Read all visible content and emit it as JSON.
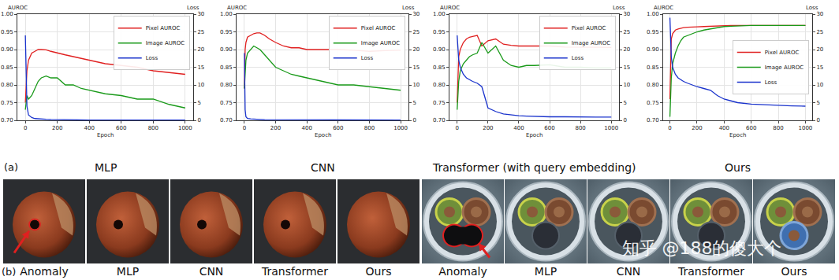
{
  "panel_labels": [
    "(a)",
    "(b)"
  ],
  "chart_data": [
    {
      "type": "line",
      "title": "MLP",
      "x_label": "Epoch",
      "y_label": "AUROC",
      "y2_label": "Loss",
      "x": [
        0,
        5,
        10,
        20,
        40,
        60,
        80,
        100,
        130,
        160,
        200,
        250,
        300,
        350,
        400,
        450,
        500,
        600,
        700,
        800,
        900,
        1000
      ],
      "series": [
        {
          "name": "Pixel AUROC",
          "color": "#e02020",
          "values": [
            0.75,
            0.8,
            0.84,
            0.87,
            0.89,
            0.895,
            0.9,
            0.9,
            0.899,
            0.895,
            0.89,
            0.885,
            0.88,
            0.875,
            0.87,
            0.865,
            0.86,
            0.855,
            0.85,
            0.84,
            0.835,
            0.83
          ]
        },
        {
          "name": "Image AUROC",
          "color": "#1a9a1a",
          "values": [
            0.73,
            0.76,
            0.77,
            0.76,
            0.77,
            0.79,
            0.81,
            0.82,
            0.825,
            0.82,
            0.82,
            0.8,
            0.8,
            0.79,
            0.785,
            0.78,
            0.775,
            0.77,
            0.76,
            0.76,
            0.745,
            0.735
          ]
        },
        {
          "name": "Loss",
          "color": "#1a33cc",
          "axis": "y2",
          "values": [
            24,
            10,
            4,
            1.5,
            0.8,
            0.5,
            0.4,
            0.3,
            0.3,
            0.25,
            0.2,
            0.2,
            0.15,
            0.15,
            0.1,
            0.1,
            0.1,
            0.1,
            0.1,
            0.1,
            0.1,
            0.1
          ]
        }
      ],
      "xlim": [
        -50,
        1050
      ],
      "xticks": [
        0,
        200,
        400,
        600,
        800,
        1000
      ],
      "ylim": [
        0.7,
        1.0
      ],
      "yticks": [
        {
          "value": 0.7,
          "label": "0.70"
        },
        {
          "value": 0.75,
          "label": "0.75"
        },
        {
          "value": 0.8,
          "label": "0.80"
        },
        {
          "value": 0.85,
          "label": "0.85"
        },
        {
          "value": 0.9,
          "label": "0.90"
        },
        {
          "value": 0.95,
          "label": "0.95"
        },
        {
          "value": 1.0,
          "label": "1.00"
        }
      ],
      "y2lim": [
        0,
        30
      ],
      "y2ticks": [
        0,
        5,
        10,
        15,
        20,
        25,
        30
      ],
      "grid": true,
      "legend": "upper right"
    },
    {
      "type": "line",
      "title": "CNN",
      "x_label": "Epoch",
      "y_label": "AUROC",
      "y2_label": "Loss",
      "x": [
        0,
        5,
        10,
        20,
        40,
        60,
        80,
        100,
        130,
        160,
        200,
        250,
        300,
        350,
        400,
        450,
        500,
        600,
        700,
        800,
        900,
        1000
      ],
      "series": [
        {
          "name": "Pixel AUROC",
          "color": "#e02020",
          "values": [
            0.79,
            0.9,
            0.92,
            0.935,
            0.94,
            0.945,
            0.947,
            0.947,
            0.94,
            0.93,
            0.92,
            0.91,
            0.905,
            0.905,
            0.9,
            0.9,
            0.9,
            0.9,
            0.898,
            0.895,
            0.897,
            0.898
          ]
        },
        {
          "name": "Image AUROC",
          "color": "#1a9a1a",
          "values": [
            0.79,
            0.84,
            0.87,
            0.89,
            0.9,
            0.91,
            0.905,
            0.9,
            0.885,
            0.87,
            0.85,
            0.84,
            0.83,
            0.825,
            0.82,
            0.815,
            0.81,
            0.8,
            0.8,
            0.795,
            0.79,
            0.785
          ]
        },
        {
          "name": "Loss",
          "color": "#1a33cc",
          "axis": "y2",
          "values": [
            19,
            3,
            1,
            0.5,
            0.4,
            0.3,
            0.3,
            0.25,
            0.2,
            0.2,
            0.2,
            0.15,
            0.15,
            0.15,
            0.1,
            0.1,
            0.1,
            0.1,
            0.1,
            0.1,
            0.1,
            0.1
          ]
        }
      ],
      "xlim": [
        -50,
        1050
      ],
      "xticks": [
        0,
        200,
        400,
        600,
        800,
        1000
      ],
      "ylim": [
        0.7,
        1.0
      ],
      "yticks": [
        {
          "value": 0.7,
          "label": "0.70"
        },
        {
          "value": 0.75,
          "label": "0.75"
        },
        {
          "value": 0.8,
          "label": "0.80"
        },
        {
          "value": 0.85,
          "label": "0.85"
        },
        {
          "value": 0.9,
          "label": "0.90"
        },
        {
          "value": 0.95,
          "label": "0.95"
        },
        {
          "value": 1.0,
          "label": "1.00"
        }
      ],
      "y2lim": [
        0,
        30
      ],
      "y2ticks": [
        0,
        5,
        10,
        15,
        20,
        25,
        30
      ],
      "grid": true,
      "legend": "upper right"
    },
    {
      "type": "line",
      "title": "Transformer (with query embedding)",
      "x_label": "Epoch",
      "y_label": "AUROC",
      "y2_label": "Loss",
      "x": [
        0,
        5,
        10,
        20,
        40,
        60,
        80,
        100,
        130,
        160,
        200,
        250,
        300,
        350,
        400,
        450,
        500,
        600,
        700,
        800,
        900,
        1000
      ],
      "series": [
        {
          "name": "Pixel AUROC",
          "color": "#e02020",
          "values": [
            0.75,
            0.85,
            0.88,
            0.9,
            0.92,
            0.93,
            0.935,
            0.937,
            0.94,
            0.91,
            0.925,
            0.93,
            0.915,
            0.912,
            0.91,
            0.91,
            0.91,
            0.91,
            0.907,
            0.907,
            0.906,
            0.906
          ]
        },
        {
          "name": "Image AUROC",
          "color": "#1a9a1a",
          "values": [
            0.73,
            0.78,
            0.81,
            0.84,
            0.86,
            0.87,
            0.88,
            0.885,
            0.89,
            0.92,
            0.89,
            0.91,
            0.87,
            0.855,
            0.85,
            0.855,
            0.855,
            0.857,
            0.85,
            0.85,
            0.848,
            0.848
          ]
        },
        {
          "name": "Loss",
          "color": "#1a33cc",
          "axis": "y2",
          "values": [
            24,
            19,
            17,
            15,
            13,
            12,
            11.5,
            11,
            10.5,
            9.5,
            3.5,
            2.5,
            1.8,
            1.5,
            1.3,
            1.2,
            1.1,
            1.0,
            1.0,
            0.9,
            0.9,
            0.9
          ]
        }
      ],
      "xlim": [
        -50,
        1050
      ],
      "xticks": [
        0,
        200,
        400,
        600,
        800,
        1000
      ],
      "ylim": [
        0.7,
        1.0
      ],
      "yticks": [
        {
          "value": 0.7,
          "label": "0.70"
        },
        {
          "value": 0.75,
          "label": "0.75"
        },
        {
          "value": 0.8,
          "label": "0.80"
        },
        {
          "value": 0.85,
          "label": "0.85"
        },
        {
          "value": 0.9,
          "label": "0.90"
        },
        {
          "value": 0.95,
          "label": "0.95"
        },
        {
          "value": 1.0,
          "label": "1.00"
        }
      ],
      "y2lim": [
        0,
        30
      ],
      "y2ticks": [
        0,
        5,
        10,
        15,
        20,
        25,
        30
      ],
      "grid": true,
      "legend": "upper right"
    },
    {
      "type": "line",
      "title": "Ours",
      "x_label": "Epoch",
      "y_label": "AUROC",
      "y2_label": "Loss",
      "x": [
        0,
        5,
        10,
        20,
        40,
        60,
        80,
        100,
        130,
        160,
        200,
        250,
        300,
        350,
        400,
        450,
        500,
        600,
        700,
        800,
        900,
        1000
      ],
      "series": [
        {
          "name": "Pixel AUROC",
          "color": "#e02020",
          "values": [
            0.76,
            0.9,
            0.93,
            0.945,
            0.955,
            0.958,
            0.96,
            0.962,
            0.963,
            0.963,
            0.964,
            0.965,
            0.966,
            0.967,
            0.968,
            0.968,
            0.968,
            0.968,
            0.968,
            0.968,
            0.968,
            0.968
          ]
        },
        {
          "name": "Image AUROC",
          "color": "#1a9a1a",
          "values": [
            0.71,
            0.78,
            0.82,
            0.86,
            0.89,
            0.91,
            0.925,
            0.935,
            0.94,
            0.945,
            0.95,
            0.955,
            0.958,
            0.962,
            0.965,
            0.966,
            0.967,
            0.968,
            0.968,
            0.968,
            0.968,
            0.968
          ]
        },
        {
          "name": "Loss",
          "color": "#1a33cc",
          "axis": "y2",
          "values": [
            29,
            22,
            18,
            15,
            13,
            12,
            11.5,
            11,
            10.5,
            10,
            9.5,
            9,
            8.5,
            7,
            6,
            5.5,
            5,
            4.6,
            4.4,
            4.2,
            4.1,
            4.0
          ]
        }
      ],
      "xlim": [
        -50,
        1050
      ],
      "xticks": [
        0,
        200,
        400,
        600,
        800,
        1000
      ],
      "ylim": [
        0.7,
        1.0
      ],
      "yticks": [
        {
          "value": 0.7,
          "label": "0.70"
        },
        {
          "value": 0.75,
          "label": "0.75"
        },
        {
          "value": 0.8,
          "label": "0.80"
        },
        {
          "value": 0.85,
          "label": "0.85"
        },
        {
          "value": 0.9,
          "label": "0.90"
        },
        {
          "value": 0.95,
          "label": "0.95"
        },
        {
          "value": 1.0,
          "label": "1.00"
        }
      ],
      "y2lim": [
        0,
        30
      ],
      "y2ticks": [
        0,
        5,
        10,
        15,
        20,
        25,
        30
      ],
      "grid": true,
      "legend": "center right"
    }
  ],
  "image_row": {
    "labels": [
      "Anomaly",
      "MLP",
      "CNN",
      "Transformer",
      "Ours",
      "Anomaly",
      "MLP",
      "CNN",
      "Transformer",
      "Ours"
    ],
    "watermark": "知乎 @188的傻大个"
  }
}
